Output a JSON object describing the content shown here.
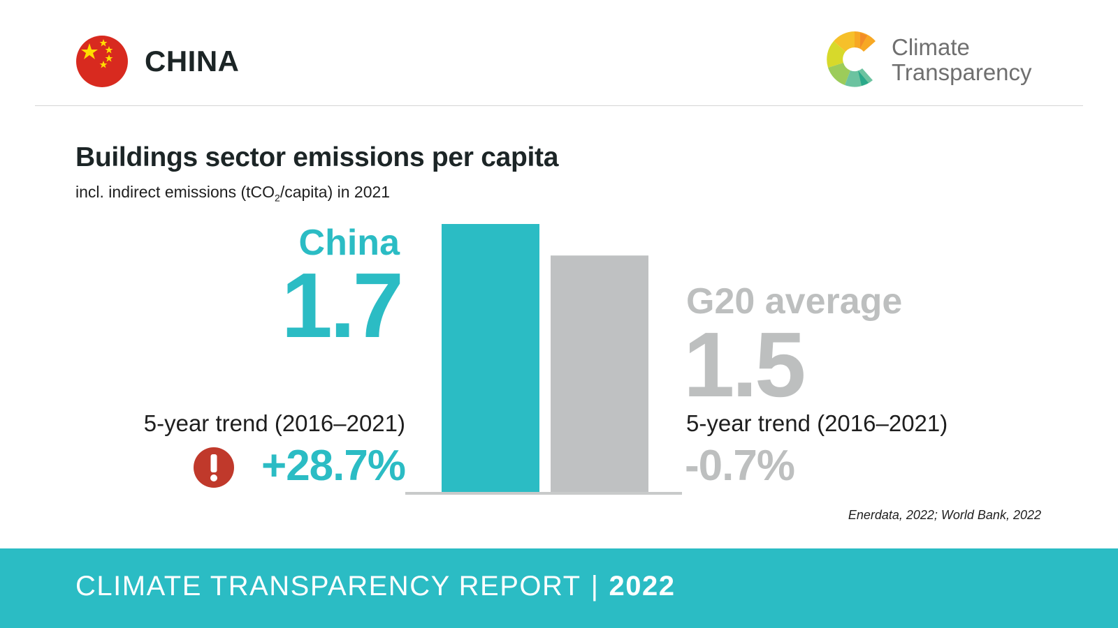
{
  "header": {
    "country": "CHINA",
    "flag_icon": "china-flag-icon",
    "logo_icon": "climate-transparency-logo-icon",
    "logo_line1": "Climate",
    "logo_line2": "Transparency"
  },
  "title": "Buildings sector emissions per capita",
  "subtitle": {
    "before_sub": "incl. indirect emissions (tCO",
    "sub": "2",
    "after_sub": "/capita) in 2021"
  },
  "china": {
    "label": "China",
    "value": "1.7",
    "trend_label": "5-year trend (2016–2021)",
    "trend_value": "+28.7%",
    "warning_icon": "exclamation-warning-icon"
  },
  "g20": {
    "label": "G20 average",
    "value": "1.5",
    "trend_label": "5-year trend (2016–2021)",
    "trend_value": "-0.7%"
  },
  "chart_data": {
    "type": "bar",
    "categories": [
      "China",
      "G20 average"
    ],
    "values": [
      1.7,
      1.5
    ],
    "colors": [
      "#2bbcc4",
      "#bfc1c2"
    ],
    "ylim": [
      0,
      1.7
    ],
    "grid": false
  },
  "source": "Enerdata, 2022; World Bank, 2022",
  "footer": {
    "report": "CLIMATE TRANSPARENCY REPORT",
    "separator": "|",
    "year": "2022"
  },
  "colors": {
    "accent": "#2bbcc4",
    "g20_gray": "#bfc1c2",
    "warning_red": "#c0392b"
  }
}
